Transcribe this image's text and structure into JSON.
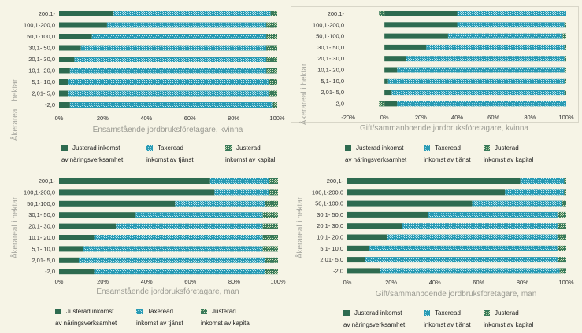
{
  "categories": [
    "200,1-",
    "100,1-200,0",
    "50,1-100,0",
    "30,1- 50,0",
    "20,1- 30,0",
    "10,1- 20,0",
    "5,1- 10,0",
    "2,01-    5,0",
    "-2,0"
  ],
  "y_axis_label": "Åkerareal i hektar",
  "legend": {
    "s1_line1": "Justerad inkomst",
    "s1_line2": "av näringsverksamhet",
    "s2_line1": "Taxeread",
    "s2_line2": "inkomst av tjänst",
    "s3_line1": "Justerad",
    "s3_line2": "inkomst av kapital"
  },
  "colors": {
    "business": "#2e6b50",
    "service": "#2a9bb4",
    "capital": "#3a7a5a",
    "background": "#f6f4e6"
  },
  "panels": [
    {
      "xtitle": "Ensamstående jordbruksföretagare, kvinna",
      "ticks": [
        "0%",
        "20%",
        "40%",
        "60%",
        "80%",
        "100%"
      ]
    },
    {
      "xtitle": "Gift/sammanboende jordbruksföretagare, kvinna",
      "ticks": [
        "-20%",
        "0%",
        "20%",
        "40%",
        "60%",
        "80%",
        "100%"
      ]
    },
    {
      "xtitle": "Ensamstående jordbruksföretagare, man",
      "ticks": [
        "0%",
        "20%",
        "40%",
        "60%",
        "80%",
        "100%"
      ]
    },
    {
      "xtitle": "Gift/sammanboende jordbruksföretagare, man",
      "ticks": [
        "0%",
        "20%",
        "40%",
        "60%",
        "80%",
        "100%"
      ]
    }
  ],
  "chart_data": [
    {
      "type": "bar",
      "orientation": "horizontal",
      "stacked": true,
      "title": "",
      "xlabel": "Ensamstående jordbruksföretagare, kvinna",
      "ylabel": "Åkerareal i hektar",
      "xlim": [
        0,
        100
      ],
      "categories": [
        "200,1-",
        "100,1-200,0",
        "50,1-100,0",
        "30,1- 50,0",
        "20,1- 30,0",
        "10,1- 20,0",
        "5,1- 10,0",
        "2,01-    5,0",
        "-2,0"
      ],
      "series": [
        {
          "name": "Justerad inkomst av näringsverksamhet",
          "values": [
            25,
            22,
            15,
            10,
            7,
            5,
            4,
            4,
            5
          ]
        },
        {
          "name": "Taxeread inkomst av tjänst",
          "values": [
            72,
            73,
            80,
            85,
            88,
            90,
            92,
            92,
            93
          ]
        },
        {
          "name": "Justerad inkomst av kapital",
          "values": [
            3,
            5,
            5,
            5,
            5,
            5,
            4,
            4,
            2
          ]
        }
      ]
    },
    {
      "type": "bar",
      "orientation": "horizontal",
      "stacked": true,
      "title": "",
      "xlabel": "Gift/sammanboende jordbruksföretagare, kvinna",
      "ylabel": "Åkerareal i hektar",
      "xlim": [
        -20,
        100
      ],
      "categories": [
        "200,1-",
        "100,1-200,0",
        "50,1-100,0",
        "30,1- 50,0",
        "20,1- 30,0",
        "10,1- 20,0",
        "5,1- 10,0",
        "2,01-    5,0",
        "-2,0"
      ],
      "series": [
        {
          "name": "Justerad inkomst av näringsverksamhet",
          "values": [
            40,
            40,
            35,
            23,
            12,
            7,
            2,
            4,
            7
          ]
        },
        {
          "name": "Taxeread inkomst av tjänst",
          "values": [
            60,
            59,
            63,
            76,
            87,
            92,
            97,
            95,
            93
          ]
        },
        {
          "name": "Justerad inkomst av kapital",
          "values": [
            -3,
            1,
            2,
            1,
            1,
            1,
            1,
            1,
            -3
          ]
        }
      ]
    },
    {
      "type": "bar",
      "orientation": "horizontal",
      "stacked": true,
      "title": "",
      "xlabel": "Ensamstående jordbruksföretagare, man",
      "ylabel": "Åkerareal i hektar",
      "xlim": [
        0,
        100
      ],
      "categories": [
        "200,1-",
        "100,1-200,0",
        "50,1-100,0",
        "30,1- 50,0",
        "20,1- 30,0",
        "10,1- 20,0",
        "5,1- 10,0",
        "2,01-    5,0",
        "-2,0"
      ],
      "series": [
        {
          "name": "Justerad inkomst av näringsverksamhet",
          "values": [
            69,
            71,
            53,
            35,
            26,
            16,
            11,
            9,
            16
          ]
        },
        {
          "name": "Taxeread inkomst av tjänst",
          "values": [
            27,
            25,
            41,
            58,
            67,
            77,
            82,
            85,
            78
          ]
        },
        {
          "name": "Justerad inkomst av kapital",
          "values": [
            4,
            4,
            6,
            7,
            7,
            7,
            7,
            6,
            6
          ]
        }
      ]
    },
    {
      "type": "bar",
      "orientation": "horizontal",
      "stacked": true,
      "title": "",
      "xlabel": "Gift/sammanboende jordbruksföretagare, man",
      "ylabel": "Åkerareal i hektar",
      "xlim": [
        0,
        100
      ],
      "categories": [
        "200,1-",
        "100,1-200,0",
        "50,1-100,0",
        "30,1- 50,0",
        "20,1- 30,0",
        "10,1- 20,0",
        "5,1- 10,0",
        "2,01-    5,0",
        "-2,0"
      ],
      "series": [
        {
          "name": "Justerad inkomst av näringsverksamhet",
          "values": [
            79,
            72,
            57,
            37,
            25,
            18,
            10,
            8,
            15
          ]
        },
        {
          "name": "Taxeread inkomst av tjänst",
          "values": [
            20,
            27,
            41,
            59,
            71,
            78,
            86,
            88,
            82
          ]
        },
        {
          "name": "Justerad inkomst av kapital",
          "values": [
            1,
            1,
            2,
            4,
            4,
            4,
            4,
            4,
            3
          ]
        }
      ]
    }
  ]
}
